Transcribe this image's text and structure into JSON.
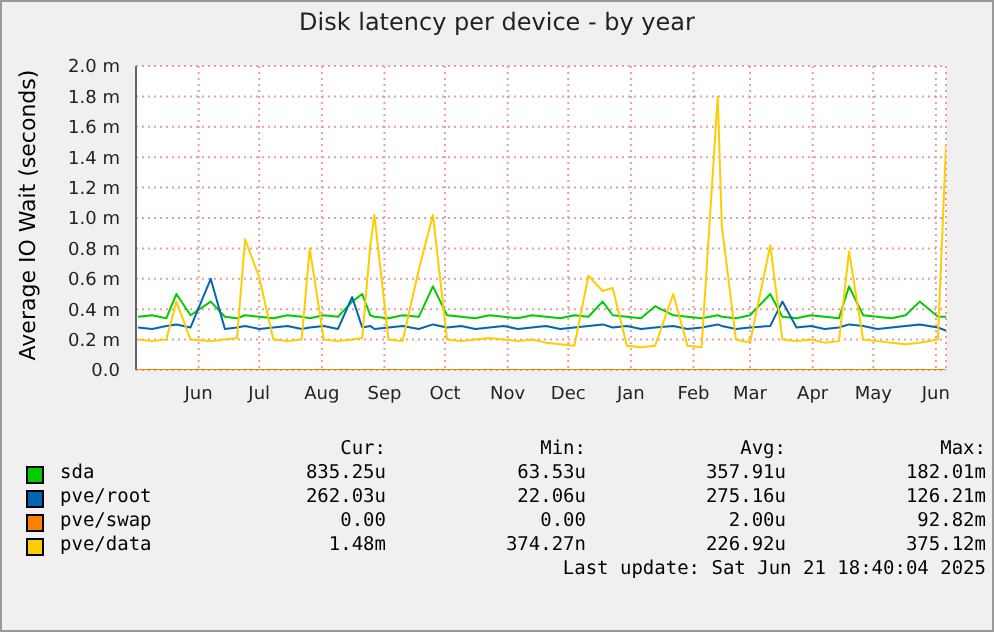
{
  "chart_data": {
    "type": "line",
    "title": "Disk latency per device - by year",
    "ylabel": "Average IO Wait (seconds)",
    "x": [
      "2024-05-17",
      "2024-05-24",
      "2024-05-31",
      "2024-06-05",
      "2024-06-12",
      "2024-06-22",
      "2024-06-29",
      "2024-07-05",
      "2024-07-09",
      "2024-07-16",
      "2024-07-23",
      "2024-07-30",
      "2024-08-06",
      "2024-08-10",
      "2024-08-17",
      "2024-08-24",
      "2024-08-31",
      "2024-09-05",
      "2024-09-09",
      "2024-09-11",
      "2024-09-18",
      "2024-09-25",
      "2024-10-03",
      "2024-10-10",
      "2024-10-17",
      "2024-10-24",
      "2024-10-31",
      "2024-11-07",
      "2024-11-14",
      "2024-11-21",
      "2024-11-28",
      "2024-12-05",
      "2024-12-12",
      "2024-12-19",
      "2024-12-26",
      "2025-01-02",
      "2025-01-07",
      "2025-01-14",
      "2025-01-21",
      "2025-01-28",
      "2025-02-06",
      "2025-02-13",
      "2025-02-20",
      "2025-02-28",
      "2025-03-02",
      "2025-03-09",
      "2025-03-16",
      "2025-03-26",
      "2025-04-01",
      "2025-04-08",
      "2025-04-15",
      "2025-04-22",
      "2025-04-29",
      "2025-05-04",
      "2025-05-11",
      "2025-05-18",
      "2025-05-25",
      "2025-06-01",
      "2025-06-08",
      "2025-06-17",
      "2025-06-21"
    ],
    "series": [
      {
        "name": "sda",
        "color": "#00cc00",
        "values": [
          0.35,
          0.36,
          0.34,
          0.5,
          0.36,
          0.45,
          0.35,
          0.34,
          0.36,
          0.35,
          0.34,
          0.36,
          0.35,
          0.34,
          0.36,
          0.35,
          0.45,
          0.5,
          0.36,
          0.35,
          0.34,
          0.36,
          0.35,
          0.55,
          0.36,
          0.35,
          0.34,
          0.36,
          0.35,
          0.34,
          0.36,
          0.35,
          0.34,
          0.36,
          0.35,
          0.45,
          0.36,
          0.35,
          0.34,
          0.42,
          0.36,
          0.35,
          0.34,
          0.36,
          0.35,
          0.34,
          0.36,
          0.5,
          0.35,
          0.34,
          0.36,
          0.35,
          0.34,
          0.55,
          0.36,
          0.35,
          0.34,
          0.36,
          0.45,
          0.35,
          0.35
        ]
      },
      {
        "name": "pve/root",
        "color": "#0066b3",
        "values": [
          0.28,
          0.27,
          0.29,
          0.3,
          0.28,
          0.6,
          0.27,
          0.28,
          0.29,
          0.27,
          0.28,
          0.29,
          0.27,
          0.28,
          0.29,
          0.27,
          0.48,
          0.28,
          0.29,
          0.27,
          0.28,
          0.29,
          0.27,
          0.3,
          0.28,
          0.29,
          0.27,
          0.28,
          0.29,
          0.27,
          0.28,
          0.29,
          0.27,
          0.28,
          0.29,
          0.3,
          0.28,
          0.29,
          0.27,
          0.28,
          0.29,
          0.27,
          0.28,
          0.3,
          0.29,
          0.27,
          0.28,
          0.29,
          0.45,
          0.28,
          0.29,
          0.27,
          0.28,
          0.3,
          0.29,
          0.27,
          0.28,
          0.29,
          0.3,
          0.28,
          0.26
        ]
      },
      {
        "name": "pve/swap",
        "color": "#ff8000",
        "values": [
          0,
          0,
          0,
          0,
          0,
          0,
          0,
          0,
          0,
          0,
          0,
          0,
          0,
          0,
          0,
          0,
          0,
          0,
          0,
          0,
          0,
          0,
          0,
          0,
          0,
          0,
          0,
          0,
          0,
          0,
          0,
          0,
          0,
          0,
          0,
          0,
          0,
          0,
          0,
          0,
          0,
          0,
          0,
          0,
          0,
          0,
          0,
          0,
          0,
          0,
          0,
          0,
          0,
          0,
          0,
          0,
          0,
          0,
          0,
          0,
          0
        ]
      },
      {
        "name": "pve/data",
        "color": "#ffcc00",
        "values": [
          0.2,
          0.19,
          0.2,
          0.45,
          0.2,
          0.19,
          0.2,
          0.21,
          0.86,
          0.61,
          0.2,
          0.19,
          0.2,
          0.8,
          0.2,
          0.19,
          0.2,
          0.21,
          0.82,
          1.02,
          0.2,
          0.19,
          0.66,
          1.02,
          0.2,
          0.19,
          0.2,
          0.21,
          0.2,
          0.19,
          0.2,
          0.18,
          0.17,
          0.16,
          0.62,
          0.52,
          0.54,
          0.16,
          0.15,
          0.16,
          0.5,
          0.16,
          0.15,
          1.8,
          0.95,
          0.2,
          0.18,
          0.82,
          0.2,
          0.19,
          0.2,
          0.18,
          0.19,
          0.78,
          0.2,
          0.19,
          0.18,
          0.17,
          0.18,
          0.2,
          1.48
        ]
      }
    ],
    "xlim": [
      "2024-05-16",
      "2025-06-21"
    ],
    "xticks": [
      {
        "value": "2024-06-16",
        "label": "Jun"
      },
      {
        "value": "2024-07-16",
        "label": "Jul"
      },
      {
        "value": "2024-08-16",
        "label": "Aug"
      },
      {
        "value": "2024-09-16",
        "label": "Sep"
      },
      {
        "value": "2024-10-16",
        "label": "Oct"
      },
      {
        "value": "2024-11-16",
        "label": "Nov"
      },
      {
        "value": "2024-12-16",
        "label": "Dec"
      },
      {
        "value": "2025-01-16",
        "label": "Jan"
      },
      {
        "value": "2025-02-16",
        "label": "Feb"
      },
      {
        "value": "2025-03-16",
        "label": "Mar"
      },
      {
        "value": "2025-04-16",
        "label": "Apr"
      },
      {
        "value": "2025-05-16",
        "label": "May"
      },
      {
        "value": "2025-06-16",
        "label": "Jun"
      }
    ],
    "ylim": [
      0,
      2.0
    ],
    "yticks": [
      {
        "value": 0,
        "label": "0.0"
      },
      {
        "value": 0.2,
        "label": "0.2 m"
      },
      {
        "value": 0.4,
        "label": "0.4 m"
      },
      {
        "value": 0.6,
        "label": "0.6 m"
      },
      {
        "value": 0.8,
        "label": "0.8 m"
      },
      {
        "value": 1.0,
        "label": "1.0 m"
      },
      {
        "value": 1.2,
        "label": "1.2 m"
      },
      {
        "value": 1.4,
        "label": "1.4 m"
      },
      {
        "value": 1.6,
        "label": "1.6 m"
      },
      {
        "value": 1.8,
        "label": "1.8 m"
      },
      {
        "value": 2.0,
        "label": "2.0 m"
      }
    ],
    "grid": true,
    "legend": "bottom",
    "marker": "none",
    "line_style": "solid",
    "annotations": [
      "Cur:",
      "Min:",
      "Avg:",
      "Max:",
      "835.25u",
      "63.53u",
      "357.91u",
      "182.01m",
      "262.03u",
      "22.06u",
      "275.16u",
      "126.21m",
      "0.00",
      "0.00",
      "2.00u",
      "92.82m",
      "1.48m",
      "374.27n",
      "226.92u",
      "375.12m",
      "Last update:  Sat Jun 21 18:40:04 2025"
    ]
  }
}
